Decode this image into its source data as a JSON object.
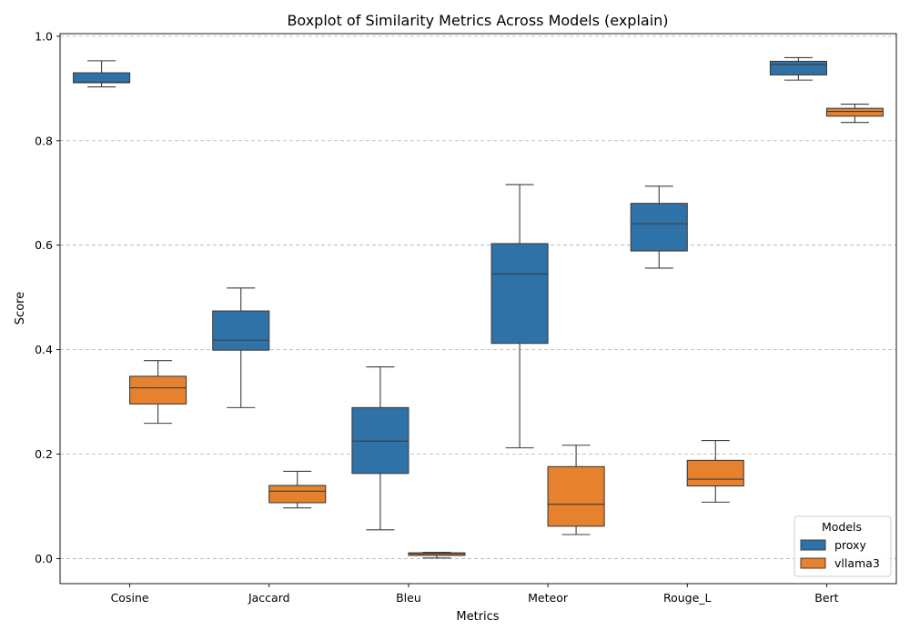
{
  "chart_data": {
    "type": "boxplot",
    "title": "Boxplot of Similarity Metrics Across Models (explain)",
    "xlabel": "Metrics",
    "ylabel": "Score",
    "ylim": [
      -0.048,
      1.005
    ],
    "yticks": [
      0.0,
      0.2,
      0.4,
      0.6,
      0.8,
      1.0
    ],
    "ytick_labels": [
      "0.0",
      "0.2",
      "0.4",
      "0.6",
      "0.8",
      "1.0"
    ],
    "grid": "y-dashed",
    "categories": [
      "Cosine",
      "Jaccard",
      "Bleu",
      "Meteor",
      "Rouge_L",
      "Bert"
    ],
    "legend": {
      "title": "Models",
      "placement": "bottom-right"
    },
    "series": [
      {
        "name": "proxy",
        "color": "#2f72a8",
        "boxes": [
          {
            "whislo": 0.903,
            "q1": 0.911,
            "med": 0.912,
            "q3": 0.93,
            "whishi": 0.953
          },
          {
            "whislo": 0.289,
            "q1": 0.399,
            "med": 0.418,
            "q3": 0.474,
            "whishi": 0.518
          },
          {
            "whislo": 0.055,
            "q1": 0.163,
            "med": 0.225,
            "q3": 0.289,
            "whishi": 0.367
          },
          {
            "whislo": 0.212,
            "q1": 0.412,
            "med": 0.545,
            "q3": 0.603,
            "whishi": 0.716
          },
          {
            "whislo": 0.556,
            "q1": 0.589,
            "med": 0.641,
            "q3": 0.68,
            "whishi": 0.713
          },
          {
            "whislo": 0.916,
            "q1": 0.926,
            "med": 0.946,
            "q3": 0.952,
            "whishi": 0.959
          }
        ]
      },
      {
        "name": "vllama3",
        "color": "#e6812d",
        "boxes": [
          {
            "whislo": 0.259,
            "q1": 0.296,
            "med": 0.327,
            "q3": 0.349,
            "whishi": 0.379
          },
          {
            "whislo": 0.097,
            "q1": 0.107,
            "med": 0.129,
            "q3": 0.14,
            "whishi": 0.167
          },
          {
            "whislo": 0.001,
            "q1": 0.006,
            "med": 0.009,
            "q3": 0.011,
            "whishi": 0.012
          },
          {
            "whislo": 0.046,
            "q1": 0.062,
            "med": 0.104,
            "q3": 0.176,
            "whishi": 0.217
          },
          {
            "whislo": 0.108,
            "q1": 0.139,
            "med": 0.152,
            "q3": 0.188,
            "whishi": 0.226
          },
          {
            "whislo": 0.835,
            "q1": 0.847,
            "med": 0.856,
            "q3": 0.862,
            "whishi": 0.87
          }
        ]
      }
    ]
  }
}
